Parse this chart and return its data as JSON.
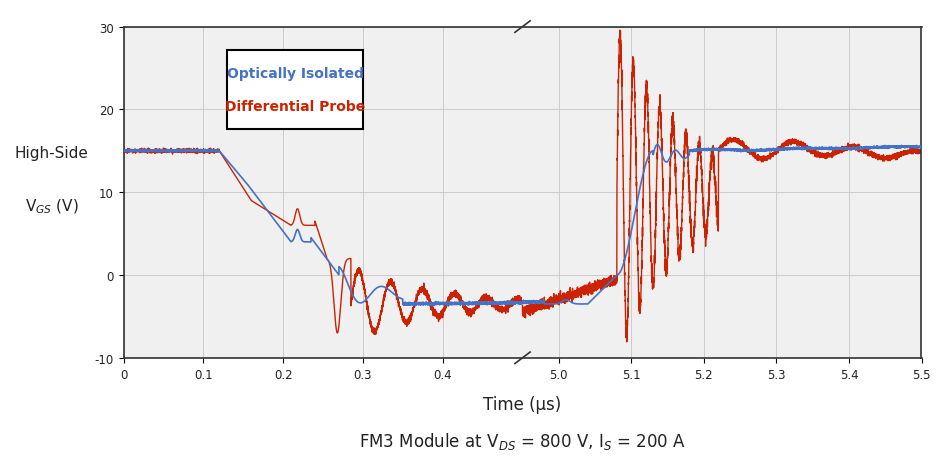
{
  "xlabel": "Time (μs)",
  "ylabel_line1": "High-Side",
  "ylabel_line2": "V$_{GS}$ (V)",
  "subtitle": "FM3 Module at V$_{DS}$ = 800 V, I$_{S}$ = 200 A",
  "xlim_left": [
    0,
    0.5
  ],
  "xlim_right": [
    4.95,
    5.5
  ],
  "ylim": [
    -10,
    30
  ],
  "xticks_left": [
    0,
    0.1,
    0.2,
    0.3,
    0.4
  ],
  "xticks_right": [
    5.0,
    5.1,
    5.2,
    5.3,
    5.4,
    5.5
  ],
  "yticks": [
    -10,
    0,
    10,
    20,
    30
  ],
  "legend_labels": [
    "Optically Isolated",
    "Differential Probe"
  ],
  "legend_colors": [
    "#4472C4",
    "#CC2200"
  ],
  "blue_color": "#4472C4",
  "red_color": "#CC2200",
  "bg_color": "#FFFFFF",
  "grid_color": "#CCCCCC"
}
